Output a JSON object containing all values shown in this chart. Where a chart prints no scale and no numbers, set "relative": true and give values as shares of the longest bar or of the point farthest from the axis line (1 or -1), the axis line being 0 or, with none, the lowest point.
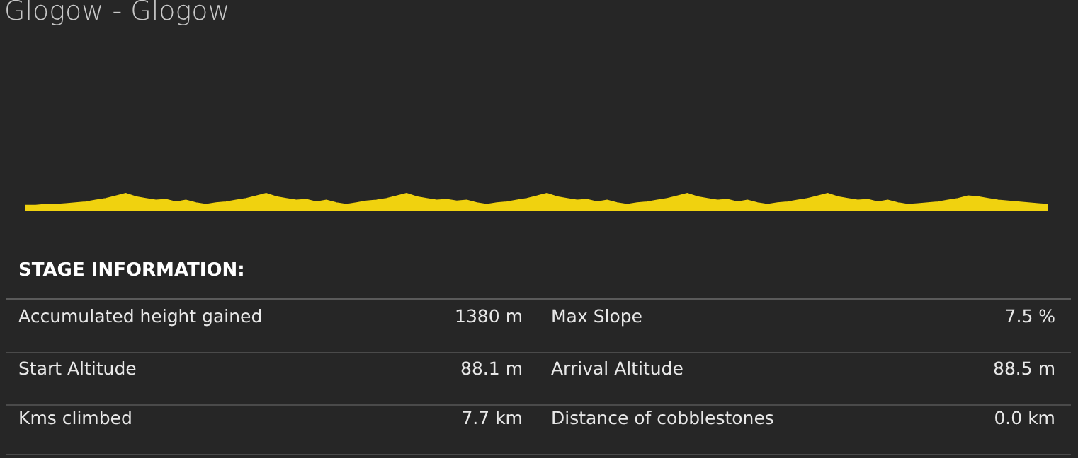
{
  "chart_data": [
    {
      "type": "area",
      "title": "Glogow - Glogow",
      "relative": true,
      "tick_labels": false,
      "color": "#f0d20f",
      "categories": [
        null,
        null,
        null,
        null,
        null,
        null,
        null,
        null,
        null,
        null,
        null,
        null,
        null,
        null,
        null,
        null,
        null,
        null,
        null,
        null,
        null,
        null,
        null,
        null,
        null,
        null,
        null,
        null,
        null,
        null,
        null,
        null,
        null,
        null,
        null,
        null,
        null,
        null,
        null,
        null,
        null,
        null,
        null,
        null,
        null,
        null,
        null,
        null,
        null,
        null,
        null,
        null,
        null,
        null,
        null,
        null,
        null,
        null,
        null,
        null,
        null,
        null,
        null,
        null,
        null,
        null,
        null,
        null,
        null,
        null,
        null,
        null,
        null,
        null,
        null,
        null,
        null,
        null,
        null,
        null,
        null,
        null,
        null,
        null,
        null,
        null,
        null,
        null,
        null,
        null,
        null,
        null,
        null,
        null,
        null,
        null,
        null,
        null,
        null,
        null,
        null,
        null,
        null
      ],
      "values": [
        0.3,
        0.3,
        0.35,
        0.35,
        0.4,
        0.45,
        0.5,
        0.6,
        0.7,
        0.85,
        1,
        0.8,
        0.7,
        0.6,
        0.65,
        0.5,
        0.6,
        0.45,
        0.35,
        0.45,
        0.5,
        0.6,
        0.7,
        0.85,
        1,
        0.8,
        0.7,
        0.6,
        0.65,
        0.5,
        0.6,
        0.45,
        0.35,
        0.45,
        0.55,
        0.6,
        0.7,
        0.85,
        1,
        0.8,
        0.7,
        0.6,
        0.65,
        0.55,
        0.6,
        0.45,
        0.35,
        0.45,
        0.5,
        0.6,
        0.7,
        0.85,
        1,
        0.8,
        0.7,
        0.6,
        0.65,
        0.5,
        0.6,
        0.45,
        0.35,
        0.45,
        0.5,
        0.6,
        0.7,
        0.85,
        1,
        0.8,
        0.7,
        0.6,
        0.65,
        0.5,
        0.6,
        0.45,
        0.35,
        0.45,
        0.5,
        0.6,
        0.7,
        0.85,
        1,
        0.8,
        0.7,
        0.6,
        0.65,
        0.5,
        0.6,
        0.45,
        0.35,
        0.4,
        0.45,
        0.5,
        0.6,
        0.7,
        0.85,
        0.8,
        0.7,
        0.6,
        0.55,
        0.5,
        0.45,
        0.4,
        0.35
      ]
    },
    {
      "type": "other",
      "title": "STAGE INFORMATION:",
      "annotations": [
        "Accumulated height gained",
        "1380 m",
        "Max Slope",
        "7.5 %",
        "Start Altitude",
        "88.1 m",
        "Arrival Altitude",
        "88.5 m",
        "Kms climbed",
        "7.7 km",
        "Distance of cobblestones",
        "0.0 km"
      ]
    }
  ]
}
